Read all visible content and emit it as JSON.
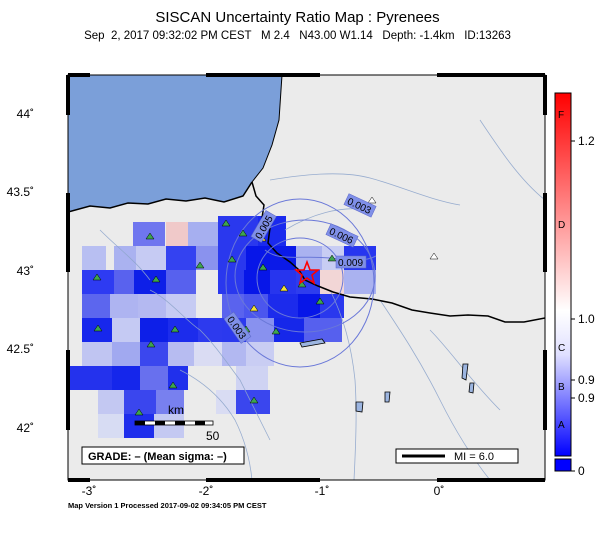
{
  "title": "SISCAN Uncertainty Ratio Map : Pyrenees",
  "subtitle": "Sep  2, 2017 09:32:02 PM CEST   M 2.4   N43.00 W1.14   Depth: -1.4km   ID:13263",
  "footer": "Map Version 1 Processed 2017-09-02 09:34:05 PM CEST",
  "axes": {
    "lat_ticks": [
      "44˚",
      "43.5˚",
      "43˚",
      "42.5˚",
      "42˚"
    ],
    "lon_ticks": [
      "-3˚",
      "-2˚",
      "-1˚",
      "0˚"
    ]
  },
  "grade_box": "GRADE: – (Mean sigma: –)",
  "scale_bar": {
    "unit": "km",
    "value": "50"
  },
  "mi_legend": "MI = 6.0",
  "contour_labels": [
    "0.003",
    "0.005",
    "0.006",
    "0.009",
    "0.003"
  ],
  "colorbar": {
    "tick_labels": [
      "1.2",
      "1.0",
      "0.9",
      "0.9",
      "0"
    ],
    "grade_letters": [
      "F",
      "D",
      "C",
      "B",
      "A"
    ],
    "colors": {
      "top": "#ff0000",
      "mid": "#ffffff",
      "bottom": "#0000ff"
    }
  },
  "colors": {
    "sea": "#7b9fd9",
    "land": "#ebebeb",
    "epicenter": "#ff0000",
    "station": "#2e8b2e"
  }
}
